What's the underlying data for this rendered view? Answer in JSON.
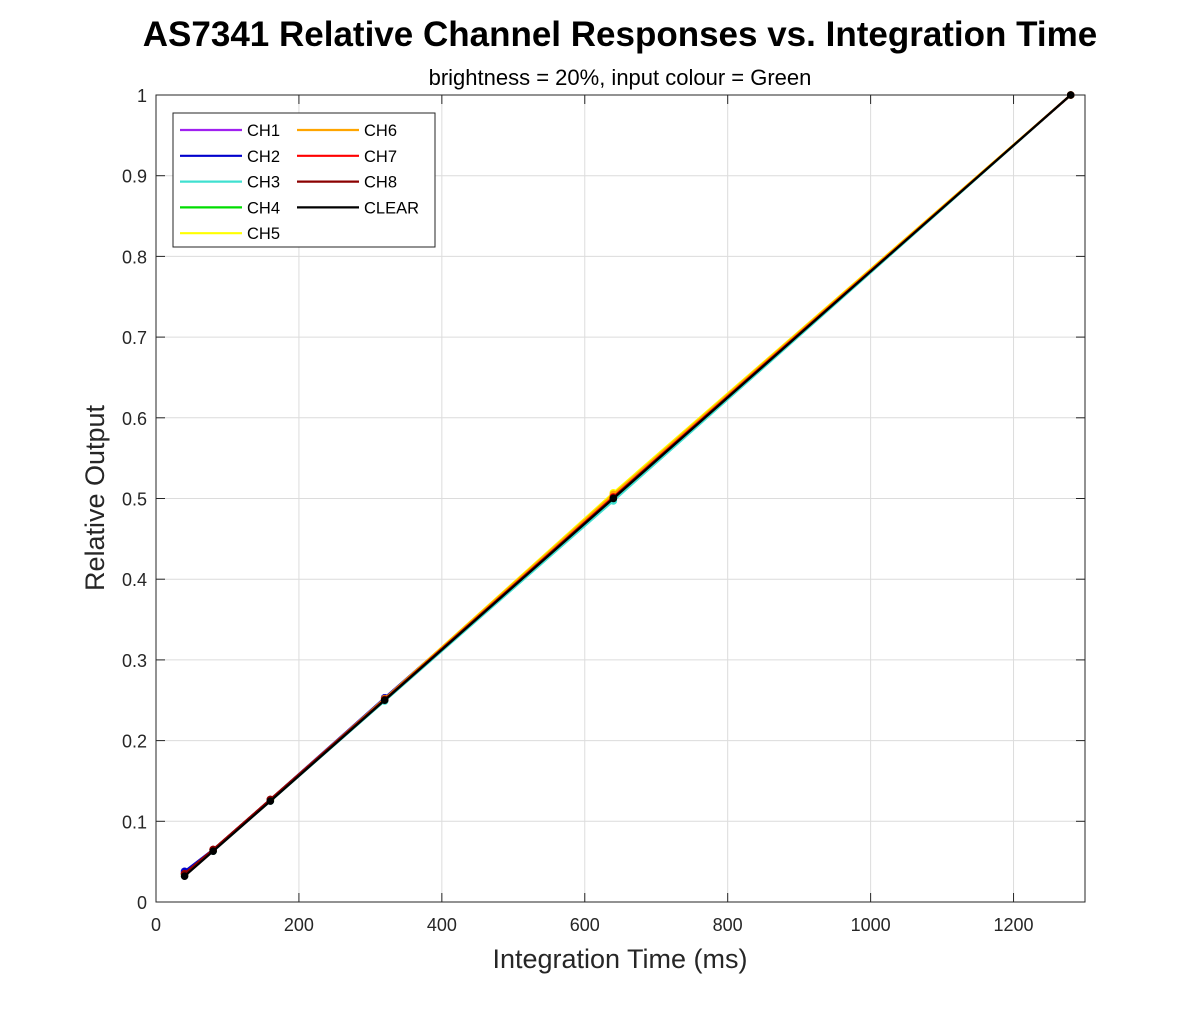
{
  "chart_data": {
    "type": "line",
    "title": "AS7341 Relative Channel Responses vs. Integration Time",
    "subtitle": "brightness = 20%, input colour = Green",
    "xlabel": "Integration Time (ms)",
    "ylabel": "Relative Output",
    "xlim": [
      0,
      1300
    ],
    "ylim": [
      0,
      1
    ],
    "xticks": [
      0,
      200,
      400,
      600,
      800,
      1000,
      1200
    ],
    "yticks": [
      0,
      0.1,
      0.2,
      0.3,
      0.4,
      0.5,
      0.6,
      0.7,
      0.8,
      0.9,
      1
    ],
    "grid": true,
    "legend_position": "top-left",
    "legend_columns": 2,
    "x": [
      40,
      80,
      160,
      320,
      640,
      1280
    ],
    "series": [
      {
        "name": "CH1",
        "color": "#a020f0",
        "values": [
          0.037,
          0.065,
          0.127,
          0.253,
          0.502,
          1
        ]
      },
      {
        "name": "CH2",
        "color": "#0000cd",
        "values": [
          0.038,
          0.065,
          0.127,
          0.253,
          0.502,
          1
        ]
      },
      {
        "name": "CH3",
        "color": "#40e0d0",
        "values": [
          0.034,
          0.063,
          0.125,
          0.249,
          0.497,
          1
        ]
      },
      {
        "name": "CH4",
        "color": "#00dd00",
        "values": [
          0.034,
          0.064,
          0.126,
          0.251,
          0.503,
          1
        ]
      },
      {
        "name": "CH5",
        "color": "#ffff00",
        "values": [
          0.034,
          0.064,
          0.126,
          0.252,
          0.507,
          1
        ]
      },
      {
        "name": "CH6",
        "color": "#ffa500",
        "values": [
          0.035,
          0.065,
          0.127,
          0.252,
          0.505,
          1
        ]
      },
      {
        "name": "CH7",
        "color": "#ff0000",
        "values": [
          0.035,
          0.065,
          0.127,
          0.251,
          0.502,
          1
        ]
      },
      {
        "name": "CH8",
        "color": "#8b0000",
        "values": [
          0.035,
          0.065,
          0.127,
          0.251,
          0.501,
          1
        ]
      },
      {
        "name": "CLEAR",
        "color": "#000000",
        "values": [
          0.032,
          0.063,
          0.125,
          0.25,
          0.5,
          1
        ]
      }
    ]
  }
}
